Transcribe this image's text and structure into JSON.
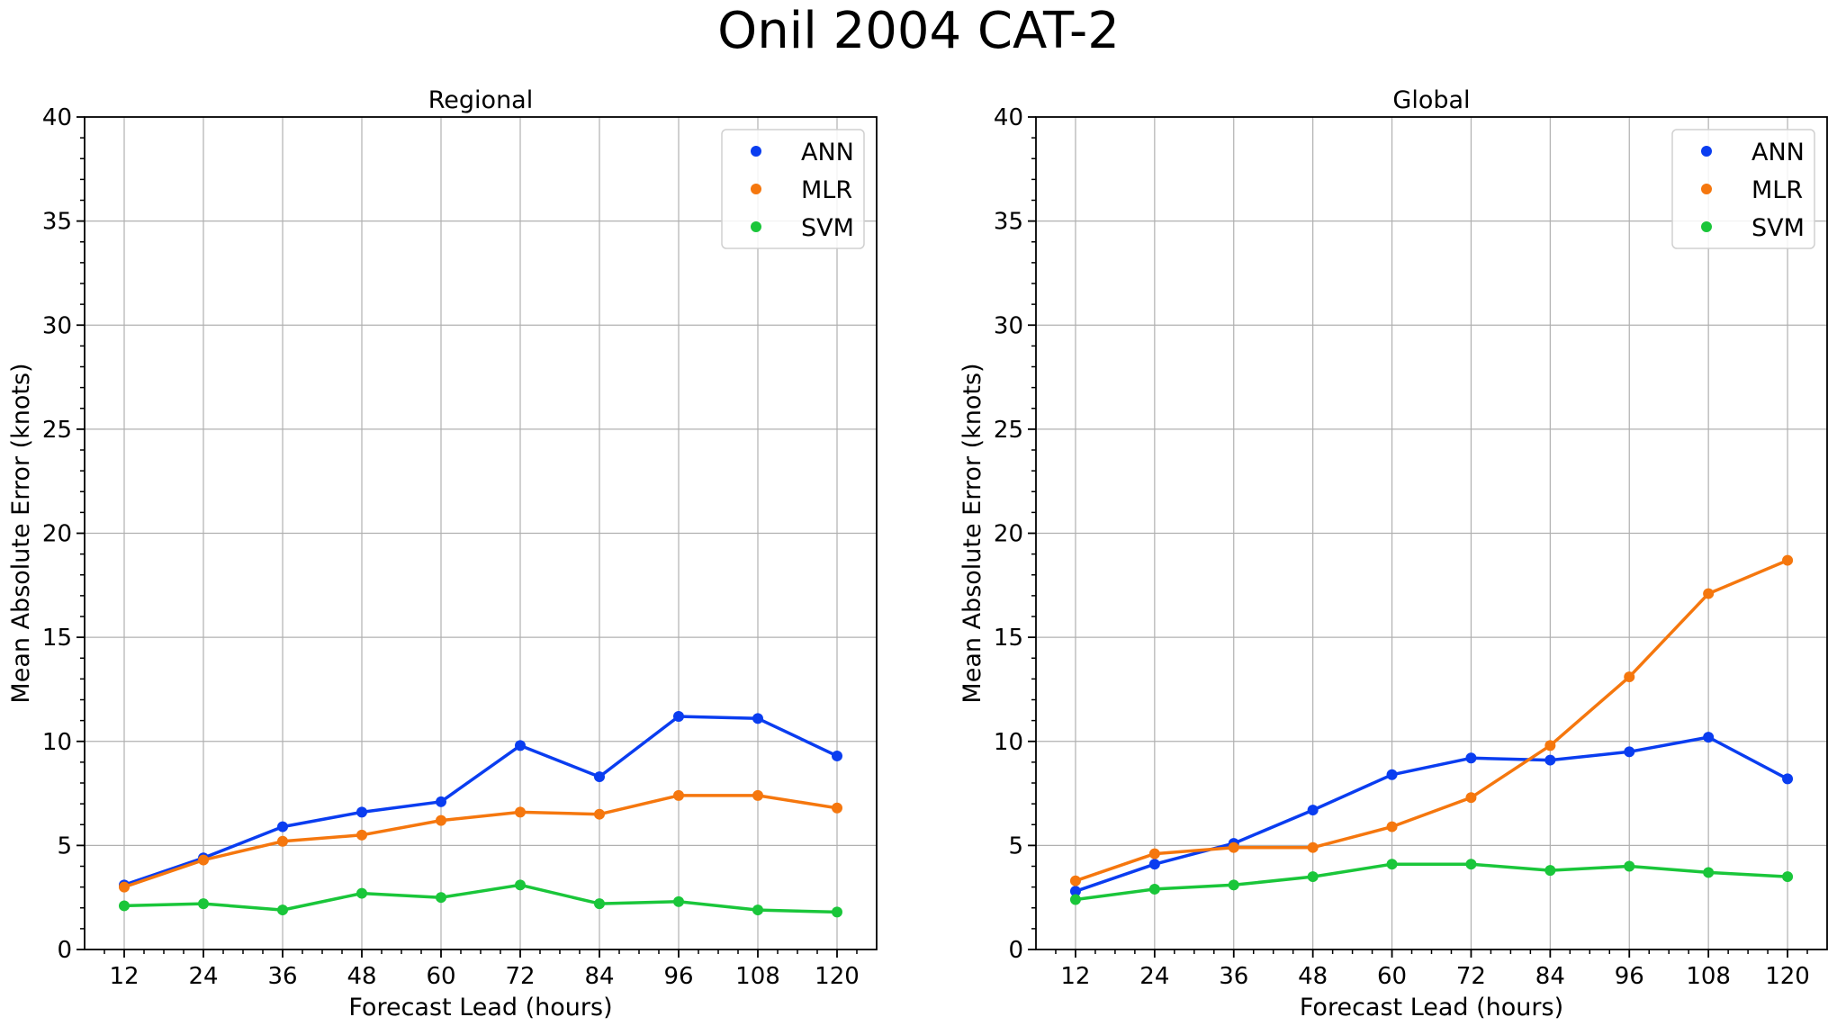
{
  "suptitle": "Onil 2004 CAT-2",
  "chart_data": [
    {
      "type": "line",
      "title": "Regional",
      "xlabel": "Forecast Lead (hours)",
      "ylabel": "Mean Absolute Error (knots)",
      "x": [
        12,
        24,
        36,
        48,
        60,
        72,
        84,
        96,
        108,
        120
      ],
      "xticks": [
        "12",
        "24",
        "36",
        "48",
        "60",
        "72",
        "84",
        "96",
        "108",
        "120"
      ],
      "xlim": [
        6,
        126
      ],
      "yticks": [
        "0",
        "5",
        "10",
        "15",
        "20",
        "25",
        "30",
        "35",
        "40"
      ],
      "ylim": [
        0,
        40
      ],
      "grid": true,
      "legend_position": "upper-right",
      "series": [
        {
          "name": "ANN",
          "color": "#0a3df0",
          "values": [
            3.1,
            4.4,
            5.9,
            6.6,
            7.1,
            9.8,
            8.3,
            11.2,
            11.1,
            9.3
          ]
        },
        {
          "name": "MLR",
          "color": "#f5770e",
          "values": [
            3.0,
            4.3,
            5.2,
            5.5,
            6.2,
            6.6,
            6.5,
            7.4,
            7.4,
            6.8
          ]
        },
        {
          "name": "SVM",
          "color": "#1ac63a",
          "values": [
            2.1,
            2.2,
            1.9,
            2.7,
            2.5,
            3.1,
            2.2,
            2.3,
            1.9,
            1.8
          ]
        }
      ]
    },
    {
      "type": "line",
      "title": "Global",
      "xlabel": "Forecast Lead (hours)",
      "ylabel": "Mean Absolute Error (knots)",
      "x": [
        12,
        24,
        36,
        48,
        60,
        72,
        84,
        96,
        108,
        120
      ],
      "xticks": [
        "12",
        "24",
        "36",
        "48",
        "60",
        "72",
        "84",
        "96",
        "108",
        "120"
      ],
      "xlim": [
        6,
        126
      ],
      "yticks": [
        "0",
        "5",
        "10",
        "15",
        "20",
        "25",
        "30",
        "35",
        "40"
      ],
      "ylim": [
        0,
        40
      ],
      "grid": true,
      "legend_position": "upper-right",
      "series": [
        {
          "name": "ANN",
          "color": "#0a3df0",
          "values": [
            2.8,
            4.1,
            5.1,
            6.7,
            8.4,
            9.2,
            9.1,
            9.5,
            10.2,
            8.2
          ]
        },
        {
          "name": "MLR",
          "color": "#f5770e",
          "values": [
            3.3,
            4.6,
            4.9,
            4.9,
            5.9,
            7.3,
            9.8,
            13.1,
            17.1,
            18.7
          ]
        },
        {
          "name": "SVM",
          "color": "#1ac63a",
          "values": [
            2.4,
            2.9,
            3.1,
            3.5,
            4.1,
            4.1,
            3.8,
            4.0,
            3.7,
            3.5
          ]
        }
      ]
    }
  ]
}
